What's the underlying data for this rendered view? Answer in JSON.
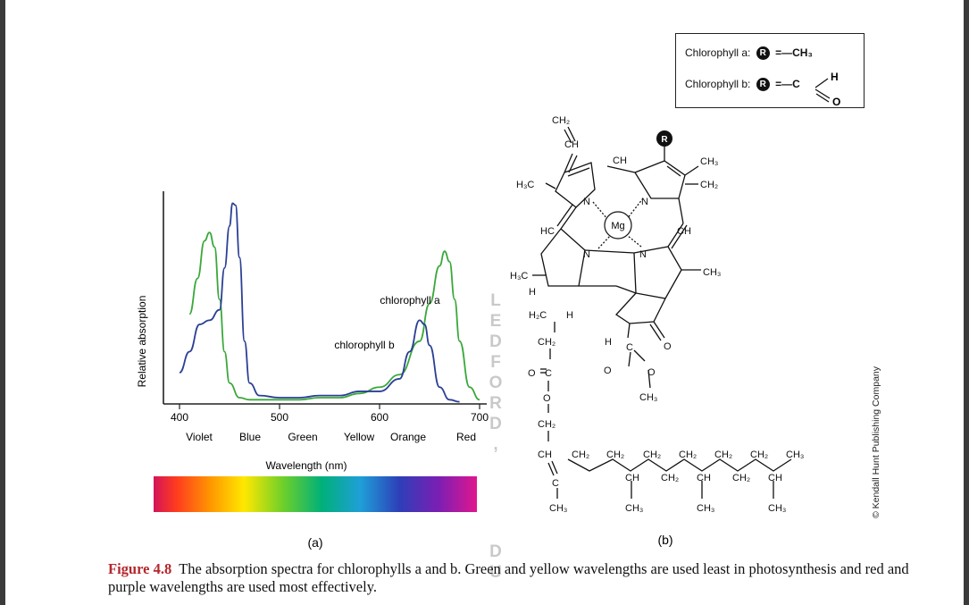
{
  "panel_a": {
    "label": "(a)",
    "ylabel": "Relative absorption",
    "xlabel": "Wavelength (nm)",
    "color_names": [
      "Violet",
      "Blue",
      "Green",
      "Yellow",
      "Orange",
      "Red"
    ]
  },
  "panel_b": {
    "label": "(b)",
    "legend": {
      "row_a_name": "Chlorophyll a:",
      "row_a_group": "=—CH₃",
      "row_b_name": "Chlorophyll b:",
      "row_b_group": "=—C",
      "r_symbol": "R"
    },
    "atoms": {
      "mg": "Mg",
      "ch2_top": "CH₂",
      "ch_top": "CH",
      "h3c_left": "H₃C",
      "ch_bridge_top": "CH",
      "ch3_right": "CH₃",
      "ch2_right": "CH₂",
      "hc_left": "HC",
      "ch_right": "CH",
      "h3c_lower": "H₃C",
      "ch3_lower_right": "CH₃",
      "h": "H",
      "o": "O",
      "c": "C",
      "ch2": "CH₂",
      "ch": "CH",
      "ch3": "CH₃",
      "h2c": "H₂C",
      "n": "N"
    }
  },
  "watermark_letters": [
    "L",
    "E",
    "D",
    "F",
    "O",
    "R",
    "D",
    ","
  ],
  "watermark_letters_2": [
    "D",
    "U"
  ],
  "copyright": "© Kendall Hunt Publishing Company",
  "caption": {
    "figure_number": "Figure 4.8",
    "text": "The absorption spectra for chlorophylls a and b. Green and yellow wavelengths are used least in photosynthesis and red and purple wavelengths are used most effectively."
  },
  "colors": {
    "chlorophyll_a": "#3aa83a",
    "chlorophyll_b": "#2b3f95",
    "caption_accent": "#b3282d"
  },
  "chart_data": {
    "type": "line",
    "xlabel": "Wavelength (nm)",
    "ylabel": "Relative absorption",
    "xlim": [
      400,
      700
    ],
    "ylim": [
      0,
      1
    ],
    "x_ticks": [
      400,
      500,
      600,
      700
    ],
    "series": [
      {
        "name": "chlorophyll a",
        "x": [
          410,
          418,
          425,
          430,
          435,
          440,
          445,
          450,
          460,
          470,
          480,
          500,
          520,
          540,
          560,
          580,
          600,
          620,
          640,
          650,
          660,
          665,
          670,
          675,
          680,
          690,
          700
        ],
        "y": [
          0.43,
          0.6,
          0.78,
          0.82,
          0.75,
          0.5,
          0.25,
          0.1,
          0.03,
          0.02,
          0.02,
          0.02,
          0.02,
          0.03,
          0.03,
          0.05,
          0.08,
          0.14,
          0.3,
          0.48,
          0.66,
          0.73,
          0.68,
          0.5,
          0.3,
          0.08,
          0.02
        ]
      },
      {
        "name": "chlorophyll b",
        "x": [
          400,
          410,
          420,
          430,
          440,
          445,
          450,
          453,
          456,
          460,
          465,
          470,
          480,
          500,
          520,
          540,
          560,
          580,
          600,
          620,
          630,
          640,
          645,
          650,
          660,
          670,
          680
        ],
        "y": [
          0.15,
          0.25,
          0.38,
          0.4,
          0.45,
          0.65,
          0.85,
          0.96,
          0.95,
          0.7,
          0.3,
          0.1,
          0.04,
          0.03,
          0.03,
          0.04,
          0.04,
          0.06,
          0.06,
          0.12,
          0.25,
          0.4,
          0.38,
          0.28,
          0.08,
          0.02,
          0.01
        ]
      }
    ],
    "annotations": [
      "chlorophyll a",
      "chlorophyll b"
    ],
    "grid": false,
    "legend": "none"
  }
}
